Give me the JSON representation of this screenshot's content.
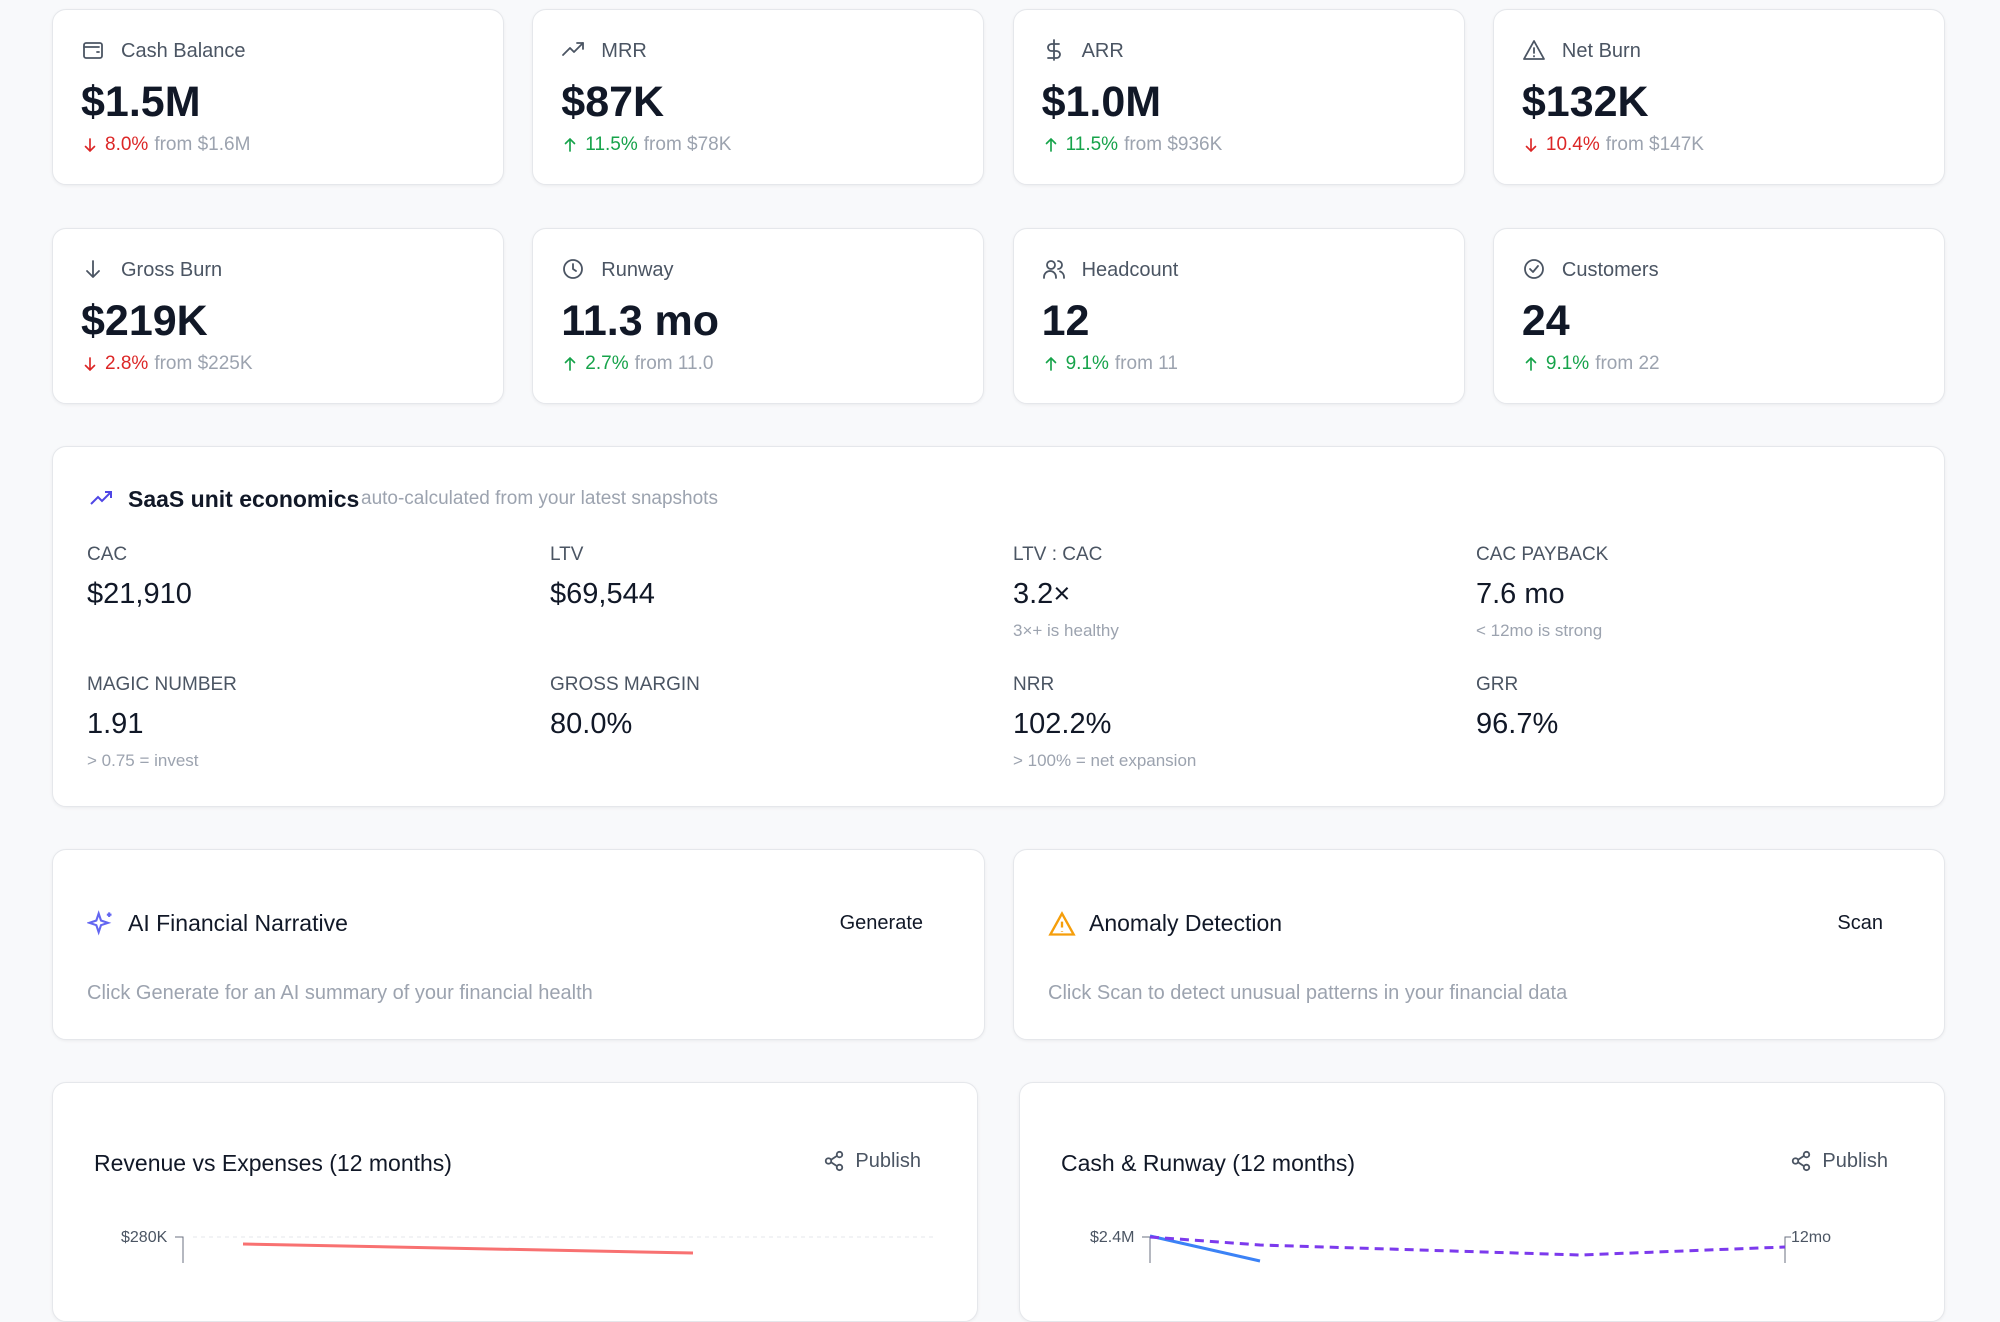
{
  "kpis": [
    {
      "label": "Cash Balance",
      "value": "$1.5M",
      "change": "8.0%",
      "from": "from $1.6M",
      "trend": "down"
    },
    {
      "label": "MRR",
      "value": "$87K",
      "change": "11.5%",
      "from": "from $78K",
      "trend": "up"
    },
    {
      "label": "ARR",
      "value": "$1.0M",
      "change": "11.5%",
      "from": "from $936K",
      "trend": "up"
    },
    {
      "label": "Net Burn",
      "value": "$132K",
      "change": "10.4%",
      "from": "from $147K",
      "trend": "down"
    },
    {
      "label": "Gross Burn",
      "value": "$219K",
      "change": "2.8%",
      "from": "from $225K",
      "trend": "down"
    },
    {
      "label": "Runway",
      "value": "11.3 mo",
      "change": "2.7%",
      "from": "from 11.0",
      "trend": "up"
    },
    {
      "label": "Headcount",
      "value": "12",
      "change": "9.1%",
      "from": "from 11",
      "trend": "up"
    },
    {
      "label": "Customers",
      "value": "24",
      "change": "9.1%",
      "from": "from 22",
      "trend": "up"
    }
  ],
  "unit_economics": {
    "title": "SaaS unit economics",
    "subtitle": "auto-calculated from your latest snapshots",
    "metrics": [
      {
        "label": "CAC",
        "value": "$21,910"
      },
      {
        "label": "LTV",
        "value": "$69,544"
      },
      {
        "label": "LTV : CAC",
        "value": "3.2×",
        "note": "3×+ is healthy"
      },
      {
        "label": "CAC PAYBACK",
        "value": "7.6 mo",
        "note": "< 12mo is strong"
      },
      {
        "label": "MAGIC NUMBER",
        "value": "1.91",
        "note": "> 0.75 = invest"
      },
      {
        "label": "GROSS MARGIN",
        "value": "80.0%"
      },
      {
        "label": "NRR",
        "value": "102.2%",
        "note": "> 100% = net expansion"
      },
      {
        "label": "GRR",
        "value": "96.7%"
      }
    ]
  },
  "narrative": {
    "title": "AI Financial Narrative",
    "button": "Generate",
    "text": "Click Generate for an AI summary of your financial health"
  },
  "anomaly": {
    "title": "Anomaly Detection",
    "button": "Scan",
    "text": "Click Scan to detect unusual patterns in your financial data"
  },
  "charts": [
    {
      "title": "Revenue vs Expenses (12 months)",
      "action": "Publish",
      "y_tick": "$280K"
    },
    {
      "title": "Cash & Runway (12 months)",
      "action": "Publish",
      "y_tick": "$2.4M",
      "y2_tick": "12mo"
    }
  ]
}
